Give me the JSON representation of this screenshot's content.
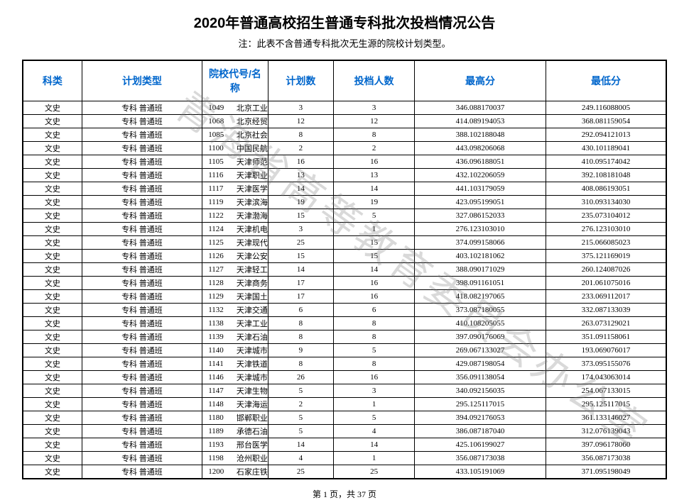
{
  "title": "2020年普通高校招生普通专科批次投档情况公告",
  "note": "注：此表不含普通专科批次无生源的院校计划类型。",
  "watermark": "青海省高等教育委员会办公室",
  "columns": [
    "科类",
    "计划类型",
    "院校代号/名称",
    "计划数",
    "投档人数",
    "最高分",
    "最低分"
  ],
  "rows": [
    {
      "cat": "文史",
      "plan": "专科 普通班",
      "code": "1049",
      "name": "北京工业职业技术学院",
      "count": "3",
      "admitted": "3",
      "high": "346.088170037",
      "low": "249.116088005"
    },
    {
      "cat": "文史",
      "plan": "专科 普通班",
      "code": "1068",
      "name": "北京经贸职业学院",
      "count": "12",
      "admitted": "12",
      "high": "414.089194053",
      "low": "368.081159054"
    },
    {
      "cat": "文史",
      "plan": "专科 普通班",
      "code": "1085",
      "name": "北京社会管理职业学院",
      "count": "8",
      "admitted": "8",
      "high": "388.102188048",
      "low": "292.094121013"
    },
    {
      "cat": "文史",
      "plan": "专科 普通班",
      "code": "1100",
      "name": "中国民航大学",
      "count": "2",
      "admitted": "2",
      "high": "443.098206068",
      "low": "430.101189041"
    },
    {
      "cat": "文史",
      "plan": "专科 普通班",
      "code": "1105",
      "name": "天津师范大学",
      "count": "16",
      "admitted": "16",
      "high": "436.096188051",
      "low": "410.095174042"
    },
    {
      "cat": "文史",
      "plan": "专科 普通班",
      "code": "1116",
      "name": "天津职业大学",
      "count": "13",
      "admitted": "13",
      "high": "432.102206059",
      "low": "392.108181048"
    },
    {
      "cat": "文史",
      "plan": "专科 普通班",
      "code": "1117",
      "name": "天津医学高等专科学校",
      "count": "14",
      "admitted": "14",
      "high": "441.103179059",
      "low": "408.086193051"
    },
    {
      "cat": "文史",
      "plan": "专科 普通班",
      "code": "1119",
      "name": "天津滨海职业学院",
      "count": "19",
      "admitted": "19",
      "high": "423.095199051",
      "low": "310.093134030"
    },
    {
      "cat": "文史",
      "plan": "专科 普通班",
      "code": "1122",
      "name": "天津渤海职业技术学院",
      "count": "15",
      "admitted": "5",
      "high": "327.086152033",
      "low": "235.073104012"
    },
    {
      "cat": "文史",
      "plan": "专科 普通班",
      "code": "1124",
      "name": "天津机电职业技术学院",
      "count": "3",
      "admitted": "1",
      "high": "276.123103010",
      "low": "276.123103010"
    },
    {
      "cat": "文史",
      "plan": "专科 普通班",
      "code": "1125",
      "name": "天津现代职业技术学院",
      "count": "25",
      "admitted": "15",
      "high": "374.099158066",
      "low": "215.066085023"
    },
    {
      "cat": "文史",
      "plan": "专科 普通班",
      "code": "1126",
      "name": "天津公安警官职业学院",
      "count": "15",
      "admitted": "15",
      "high": "403.102181062",
      "low": "375.121169019"
    },
    {
      "cat": "文史",
      "plan": "专科 普通班",
      "code": "1127",
      "name": "天津轻工职业技术学院",
      "count": "14",
      "admitted": "14",
      "high": "388.090171029",
      "low": "260.124087026"
    },
    {
      "cat": "文史",
      "plan": "专科 普通班",
      "code": "1128",
      "name": "天津商务职业学院",
      "count": "17",
      "admitted": "16",
      "high": "398.091161051",
      "low": "201.061075016"
    },
    {
      "cat": "文史",
      "plan": "专科 普通班",
      "code": "1129",
      "name": "天津国土资源和房屋职业学院",
      "count": "17",
      "admitted": "16",
      "high": "418.082197065",
      "low": "233.069112017"
    },
    {
      "cat": "文史",
      "plan": "专科 普通班",
      "code": "1132",
      "name": "天津交通职业学院",
      "count": "6",
      "admitted": "6",
      "high": "373.087180055",
      "low": "332.087133039"
    },
    {
      "cat": "文史",
      "plan": "专科 普通班",
      "code": "1138",
      "name": "天津工业职业学院",
      "count": "8",
      "admitted": "8",
      "high": "410.108205055",
      "low": "263.073129021"
    },
    {
      "cat": "文史",
      "plan": "专科 普通班",
      "code": "1139",
      "name": "天津石油职业技术学院",
      "count": "8",
      "admitted": "8",
      "high": "397.090176069",
      "low": "351.091158061"
    },
    {
      "cat": "文史",
      "plan": "专科 普通班",
      "code": "1140",
      "name": "天津城市职业学院",
      "count": "9",
      "admitted": "5",
      "high": "269.067133027",
      "low": "193.069076017"
    },
    {
      "cat": "文史",
      "plan": "专科 普通班",
      "code": "1141",
      "name": "天津铁道职业技术学院",
      "count": "8",
      "admitted": "8",
      "high": "429.087198054",
      "low": "373.095155076"
    },
    {
      "cat": "文史",
      "plan": "专科 普通班",
      "code": "1146",
      "name": "天津城市建设管理职业技术学院",
      "count": "26",
      "admitted": "16",
      "high": "356.091138054",
      "low": "174.043063014"
    },
    {
      "cat": "文史",
      "plan": "专科 普通班",
      "code": "1147",
      "name": "天津生物工程职业技术学院",
      "count": "5",
      "admitted": "3",
      "high": "340.092156035",
      "low": "254.067133015"
    },
    {
      "cat": "文史",
      "plan": "专科 普通班",
      "code": "1148",
      "name": "天津海运职业学院",
      "count": "2",
      "admitted": "1",
      "high": "295.125117015",
      "low": "295.125117015"
    },
    {
      "cat": "文史",
      "plan": "专科 普通班",
      "code": "1180",
      "name": "邯郸职业技术学院",
      "count": "5",
      "admitted": "5",
      "high": "394.092176053",
      "low": "361.133146027"
    },
    {
      "cat": "文史",
      "plan": "专科 普通班",
      "code": "1189",
      "name": "承德石油高等专科学校",
      "count": "5",
      "admitted": "4",
      "high": "386.087187040",
      "low": "312.076139043"
    },
    {
      "cat": "文史",
      "plan": "专科 普通班",
      "code": "1193",
      "name": "邢台医学高等专科学校",
      "count": "14",
      "admitted": "14",
      "high": "425.106199027",
      "low": "397.096178060"
    },
    {
      "cat": "文史",
      "plan": "专科 普通班",
      "code": "1198",
      "name": "沧州职业技术学院",
      "count": "4",
      "admitted": "1",
      "high": "356.087173038",
      "low": "356.087173038"
    },
    {
      "cat": "文史",
      "plan": "专科 普通班",
      "code": "1200",
      "name": "石家庄铁路职业技术学院",
      "count": "25",
      "admitted": "25",
      "high": "433.105191069",
      "low": "371.095198049"
    }
  ],
  "footer": {
    "page_label": "第 1 页，共 37 页"
  }
}
